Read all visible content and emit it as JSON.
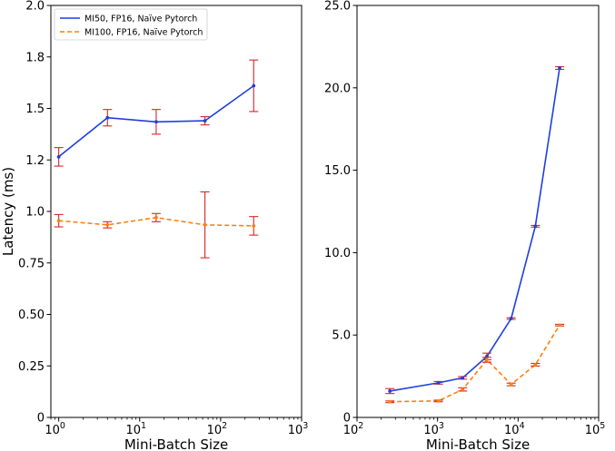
{
  "chart_data": [
    {
      "type": "line",
      "xlabel": "Mini-Batch Size",
      "ylabel": "Latency (ms)",
      "xscale": "log",
      "xlim": [
        0.8,
        1000
      ],
      "ylim": [
        0,
        2.0
      ],
      "grid": false,
      "legend": "top-left",
      "x_ticks": [
        {
          "value": 1,
          "base": "10",
          "exp": "0"
        },
        {
          "value": 10,
          "base": "10",
          "exp": "1"
        },
        {
          "value": 100,
          "base": "10",
          "exp": "2"
        },
        {
          "value": 1000,
          "base": "10",
          "exp": "3"
        }
      ],
      "y_ticks": [
        {
          "value": 0,
          "label": "0"
        },
        {
          "value": 0.25,
          "label": "0.25"
        },
        {
          "value": 0.5,
          "label": "0.50"
        },
        {
          "value": 0.75,
          "label": "0.75"
        },
        {
          "value": 1.0,
          "label": "1.0"
        },
        {
          "value": 1.25,
          "label": "1.2"
        },
        {
          "value": 1.5,
          "label": "1.5"
        },
        {
          "value": 1.75,
          "label": "1.8"
        },
        {
          "value": 2.0,
          "label": "2.0"
        }
      ],
      "series": [
        {
          "name": "MI50, FP16, Naïve Pytorch",
          "color": "#1f3fdf",
          "error_color": "#d62728",
          "dash": "solid",
          "x": [
            1,
            4,
            16,
            64,
            256
          ],
          "y": [
            1.265,
            1.455,
            1.435,
            1.44,
            1.61
          ],
          "err": [
            0.045,
            0.04,
            0.06,
            0.02,
            0.125
          ]
        },
        {
          "name": "MI100, FP16, Naïve Pytorch",
          "color": "#ff7f0e",
          "error_color": "#d62728",
          "dash": "dashed",
          "x": [
            1,
            4,
            16,
            64,
            256
          ],
          "y": [
            0.955,
            0.935,
            0.97,
            0.935,
            0.93
          ],
          "err": [
            0.03,
            0.015,
            0.02,
            0.16,
            0.045
          ]
        }
      ]
    },
    {
      "type": "line",
      "xlabel": "Mini-Batch Size",
      "ylabel": "",
      "xscale": "log",
      "xlim": [
        100,
        100000
      ],
      "ylim": [
        0,
        25.0
      ],
      "grid": false,
      "x_ticks": [
        {
          "value": 100,
          "base": "10",
          "exp": "2"
        },
        {
          "value": 1000,
          "base": "10",
          "exp": "3"
        },
        {
          "value": 10000,
          "base": "10",
          "exp": "4"
        },
        {
          "value": 100000,
          "base": "10",
          "exp": "5"
        }
      ],
      "y_ticks": [
        {
          "value": 0,
          "label": "0"
        },
        {
          "value": 5,
          "label": "5.0"
        },
        {
          "value": 10,
          "label": "10.0"
        },
        {
          "value": 15,
          "label": "15.0"
        },
        {
          "value": 20,
          "label": "20.0"
        },
        {
          "value": 25,
          "label": "25.0"
        }
      ],
      "series": [
        {
          "name": "MI50, FP16, Naïve Pytorch",
          "color": "#1f3fdf",
          "error_color": "#d62728",
          "dash": "solid",
          "x": [
            256,
            1024,
            2048,
            4096,
            8192,
            16384,
            32768
          ],
          "y": [
            1.6,
            2.1,
            2.4,
            3.7,
            6.0,
            11.6,
            21.2
          ],
          "err": [
            0.15,
            0.08,
            0.08,
            0.2,
            0.05,
            0.05,
            0.08
          ]
        },
        {
          "name": "MI100, FP16, Naïve Pytorch",
          "color": "#ff7f0e",
          "error_color": "#d62728",
          "dash": "dashed",
          "x": [
            256,
            1024,
            2048,
            4096,
            8192,
            16384,
            32768
          ],
          "y": [
            0.95,
            1.0,
            1.7,
            3.5,
            2.0,
            3.2,
            5.6
          ],
          "err": [
            0.05,
            0.05,
            0.1,
            0.15,
            0.08,
            0.08,
            0.05
          ]
        }
      ]
    }
  ]
}
